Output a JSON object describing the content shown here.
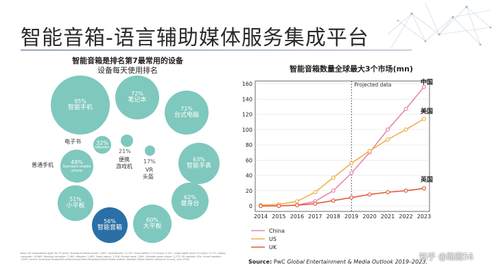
{
  "slide": {
    "title": "智能音箱-语言辅助媒体服务集成平台"
  },
  "left": {
    "title": "智能音箱是排名第7最常用的设备",
    "subtitle": "设备每天使用排名",
    "bubbles": [
      {
        "pct": "95%",
        "label": "智能手机",
        "highlight": false
      },
      {
        "pct": "72%",
        "label": "笔记本",
        "highlight": false
      },
      {
        "pct": "71%",
        "label": "台式电脑",
        "highlight": false
      },
      {
        "pct": "32%",
        "label": "eReader",
        "highlight": false
      },
      {
        "pct": "21%",
        "label": "",
        "highlight": false
      },
      {
        "pct": "17%",
        "label": "",
        "highlight": false
      },
      {
        "pct": "63%",
        "label": "智能手表",
        "highlight": false
      },
      {
        "pct": "49%",
        "label": "Standard mobile phone",
        "highlight": false
      },
      {
        "pct": "51%",
        "label": "小平板",
        "highlight": false
      },
      {
        "pct": "62%",
        "label": "健身台",
        "highlight": false
      },
      {
        "pct": "56%",
        "label": "智能音箱",
        "highlight": true
      },
      {
        "pct": "60%",
        "label": "大平板",
        "highlight": false
      }
    ],
    "labels": {
      "ereader": "电子书",
      "console_1": "便携",
      "console_2": "游戏机",
      "vr_1": "VR",
      "vr_2": "头盔",
      "standard_phone": "普通手机"
    },
    "fine_print": "Base: All respondents aged 18-75 years. Standard mobile phone: 1,807. Smartphone: 12,321. Small tablet (7-9 inches): 4,017. Large tablet (over 9 inches): 5,177. Laptop computer: 10,865. Desktop computer: 7,063. eReader: 3,063. Smart watch: 1,528. Fitness band: 2,861. Portable game player: 2,275. VR headset: 854. Smart speaker: 1,805. Source: Australia/Canada/China/Germany/United Kingdom/United States edition, Deloitte Global Mobile Consumer Survey, June 2018."
  },
  "chart_title": "智能音箱数量全球最大3个市场(mn)",
  "annotation": "Projected data",
  "source": {
    "prefix": "Source:",
    "org": " PwC ",
    "title": "Global Entertainment & Media Outlook 2019–2023."
  },
  "watermark": "知乎 @路图56",
  "colors": {
    "bubble": "#7fc8bd",
    "bubble_highlight": "#2a6fa5",
    "china": "#e886a9",
    "us": "#f2ae4a",
    "uk": "#e35a3e"
  },
  "chart_data": {
    "type": "line",
    "title": "智能音箱数量全球最大3个市场(mn)",
    "x": [
      2014,
      2015,
      2016,
      2017,
      2018,
      2019,
      2020,
      2021,
      2022,
      2023
    ],
    "xlabel": "",
    "ylabel": "",
    "ylim": [
      0,
      160
    ],
    "yticks": [
      0,
      20,
      40,
      60,
      80,
      100,
      120,
      140,
      160
    ],
    "projected_from": 2019,
    "grid": true,
    "legend": "bottom-left",
    "series": [
      {
        "name": "China",
        "end_label": "中国",
        "values": [
          0,
          0,
          1,
          6,
          20,
          43,
          70,
          100,
          127,
          156
        ]
      },
      {
        "name": "US",
        "end_label": "美国",
        "values": [
          1,
          2,
          6,
          18,
          37,
          56,
          72,
          87,
          100,
          114
        ]
      },
      {
        "name": "UK",
        "end_label": "英国",
        "values": [
          0,
          0,
          1,
          3,
          7,
          11,
          15,
          18,
          20,
          23
        ]
      }
    ]
  }
}
